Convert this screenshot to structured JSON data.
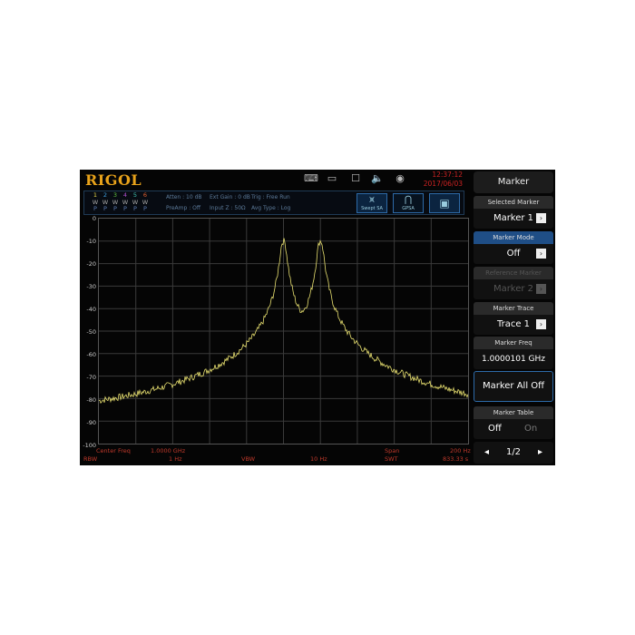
{
  "header": {
    "logo": "RIGOL",
    "time": "12:37:12",
    "date": "2017/06/03",
    "icons": [
      "keyboard-icon",
      "network-icon",
      "window-icon",
      "speaker-icon",
      "message-icon"
    ]
  },
  "traces": [
    {
      "n": "1",
      "c": "#e8d84a"
    },
    {
      "n": "2",
      "c": "#3fa0e0"
    },
    {
      "n": "3",
      "c": "#5fc040"
    },
    {
      "n": "4",
      "c": "#b050d0"
    },
    {
      "n": "5",
      "c": "#40c0b0"
    },
    {
      "n": "6",
      "c": "#e06030"
    }
  ],
  "trace_row2": "W",
  "trace_row3": "P",
  "status": {
    "atten": "Atten : 10 dB",
    "ext_gain": "Ext Gain : 0 dB",
    "trig": "Trig : Free Run",
    "preamp": "PreAmp : Off",
    "input_z": "Input Z : 50Ω",
    "avg_type": "Avg Type : Log"
  },
  "modes": {
    "swept": "Swept SA",
    "gpsa": "GPSA"
  },
  "y_ticks": [
    "0",
    "-10",
    "-20",
    "-30",
    "-40",
    "-50",
    "-60",
    "-70",
    "-80",
    "-90",
    "-100"
  ],
  "bottom": {
    "center_label": "Center Freq",
    "center_val": "1.0000 GHz",
    "span_label": "Span",
    "span_val": "200 Hz",
    "rbw_label": "RBW",
    "rbw_val": "1 Hz",
    "vbw_label": "VBW",
    "vbw_val": "10 Hz",
    "swt_label": "SWT",
    "swt_val": "833.33 s"
  },
  "menu": {
    "title": "Marker",
    "selected_marker": {
      "label": "Selected Marker",
      "value": "Marker 1"
    },
    "marker_mode": {
      "label": "Marker Mode",
      "value": "Off"
    },
    "reference_marker": {
      "label": "Reference Marker",
      "value": "Marker 2"
    },
    "marker_trace": {
      "label": "Marker Trace",
      "value": "Trace 1"
    },
    "marker_freq": {
      "label": "Marker Freq",
      "value": "1.0000101 GHz"
    },
    "marker_all_off": "Marker All Off",
    "marker_table": {
      "label": "Marker Table",
      "off": "Off",
      "on": "On"
    },
    "page": "1/2"
  },
  "chart_data": {
    "type": "line",
    "ylim": [
      -100,
      0
    ],
    "grid": true,
    "trace_color": "#e8e070",
    "peaks_offset_hz": [
      0,
      20
    ],
    "peak_level_db": -10,
    "noise_floor_db": -87
  }
}
